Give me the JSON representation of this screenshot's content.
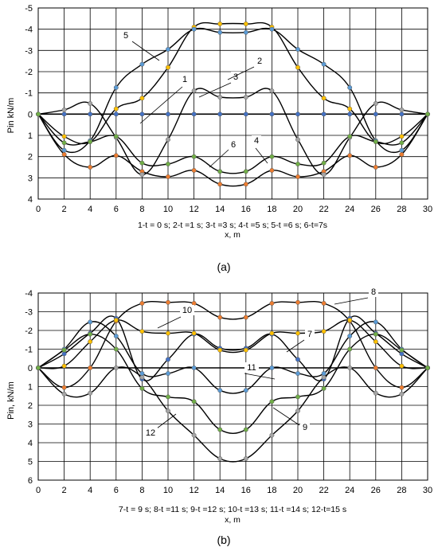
{
  "chart_data": [
    {
      "type": "line",
      "panel_label": "(a)",
      "ylabel": "Pin kN/m",
      "xlabel": "x, m",
      "caption": "1-t = 0 s;  2-t =1 s;  3-t =3 s;  4-t =5 s;  5-t =6 s;  6-t=7s",
      "xlim": [
        0,
        30
      ],
      "ylim": [
        -5,
        4
      ],
      "y_inverted": true,
      "grid": true,
      "x_ticks": [
        "0",
        "2",
        "4",
        "6",
        "8",
        "10",
        "12",
        "14",
        "16",
        "18",
        "20",
        "22",
        "24",
        "26",
        "28",
        "30"
      ],
      "y_ticks": [
        "-5",
        "-4",
        "-3",
        "-2",
        "-1",
        "0",
        "1",
        "2",
        "3",
        "4"
      ],
      "x": [
        0,
        2,
        4,
        6,
        8,
        10,
        12,
        14,
        16,
        18,
        20,
        22,
        24,
        26,
        28,
        30
      ],
      "series": [
        {
          "name": "1",
          "color": "#4472C4",
          "values": [
            0,
            0,
            0,
            0,
            0,
            0,
            0,
            0,
            0,
            0,
            0,
            0,
            0,
            0,
            0,
            0
          ]
        },
        {
          "name": "2",
          "color": "#ED7D31",
          "values": [
            0,
            1.9,
            2.5,
            1.95,
            2.7,
            2.95,
            2.65,
            3.3,
            3.3,
            2.65,
            2.95,
            2.7,
            1.95,
            2.5,
            1.9,
            0
          ]
        },
        {
          "name": "3",
          "color": "#A5A5A5",
          "values": [
            0,
            -0.2,
            -0.5,
            1.1,
            2.85,
            1.2,
            -1.1,
            -0.8,
            -0.8,
            -1.1,
            1.2,
            2.85,
            1.1,
            -0.5,
            -0.2,
            0
          ]
        },
        {
          "name": "4",
          "color": "#FFC000",
          "values": [
            0,
            1.05,
            1.3,
            -0.25,
            -0.75,
            -2.2,
            -4.1,
            -4.25,
            -4.25,
            -4.1,
            -2.2,
            -0.75,
            -0.25,
            1.3,
            1.05,
            0
          ]
        },
        {
          "name": "5",
          "color": "#5B9BD5",
          "values": [
            0,
            1.7,
            1.25,
            -1.25,
            -2.35,
            -3.05,
            -4.0,
            -3.85,
            -3.85,
            -4.0,
            -3.05,
            -2.35,
            -1.25,
            1.25,
            1.7,
            0
          ]
        },
        {
          "name": "6",
          "color": "#70AD47",
          "values": [
            0,
            1.35,
            1.3,
            1.05,
            2.3,
            2.35,
            2.0,
            2.7,
            2.7,
            2.0,
            2.35,
            2.3,
            1.05,
            1.3,
            1.35,
            0
          ]
        }
      ],
      "annotations": [
        "5",
        "1",
        "3",
        "2",
        "6",
        "4"
      ]
    },
    {
      "type": "line",
      "panel_label": "(b)",
      "ylabel": "Pin, kN/m",
      "xlabel": "x, m",
      "caption": "7-t = 9 s;  8-t =11 s;  9-t =12 s;  10-t =13 s;  11-t =14 s;  12-t=15 s",
      "xlim": [
        0,
        30
      ],
      "ylim": [
        -4,
        6
      ],
      "y_inverted": true,
      "grid": true,
      "x_ticks": [
        "0",
        "2",
        "4",
        "6",
        "8",
        "10",
        "12",
        "14",
        "16",
        "18",
        "20",
        "22",
        "24",
        "26",
        "28",
        "30"
      ],
      "y_ticks": [
        "-4",
        "-3",
        "-2",
        "-1",
        "0",
        "1",
        "2",
        "3",
        "4",
        "5",
        "6"
      ],
      "x": [
        0,
        2,
        4,
        6,
        8,
        10,
        12,
        14,
        16,
        18,
        20,
        22,
        24,
        26,
        28,
        30
      ],
      "series": [
        {
          "name": "7",
          "color": "#4472C4",
          "values": [
            0,
            -0.75,
            -1.85,
            -2.65,
            0.6,
            -0.45,
            -1.8,
            -1.05,
            -1.05,
            -1.8,
            -0.45,
            0.6,
            -2.65,
            -1.85,
            -0.75,
            0
          ]
        },
        {
          "name": "8",
          "color": "#ED7D31",
          "values": [
            0,
            1.05,
            0,
            -2.5,
            -3.45,
            -3.5,
            -3.45,
            -2.7,
            -2.7,
            -3.45,
            -3.5,
            -3.45,
            -2.5,
            0,
            1.05,
            0
          ]
        },
        {
          "name": "9",
          "color": "#A5A5A5",
          "values": [
            0,
            1.4,
            1.35,
            0,
            0.5,
            2.3,
            3.6,
            4.85,
            4.85,
            3.6,
            2.3,
            0.5,
            0,
            1.35,
            1.4,
            0
          ]
        },
        {
          "name": "10",
          "color": "#FFC000",
          "values": [
            0,
            -0.1,
            -1.4,
            -2.55,
            -1.95,
            -1.85,
            -1.85,
            -0.95,
            -0.95,
            -1.85,
            -1.85,
            -1.95,
            -2.55,
            -1.4,
            -0.1,
            0
          ]
        },
        {
          "name": "11",
          "color": "#5B9BD5",
          "values": [
            0,
            -1.0,
            -2.45,
            -1.7,
            0.3,
            0.3,
            0,
            1.2,
            1.2,
            0,
            0.3,
            0.3,
            -1.7,
            -2.45,
            -1.0,
            0
          ]
        },
        {
          "name": "12",
          "color": "#70AD47",
          "values": [
            0,
            -0.95,
            -1.8,
            -1.0,
            1.1,
            1.55,
            1.8,
            3.3,
            3.3,
            1.8,
            1.55,
            1.1,
            -1.0,
            -1.8,
            -0.95,
            0
          ]
        }
      ],
      "annotations": [
        "8",
        "10",
        "7",
        "11",
        "9",
        "12"
      ]
    }
  ]
}
